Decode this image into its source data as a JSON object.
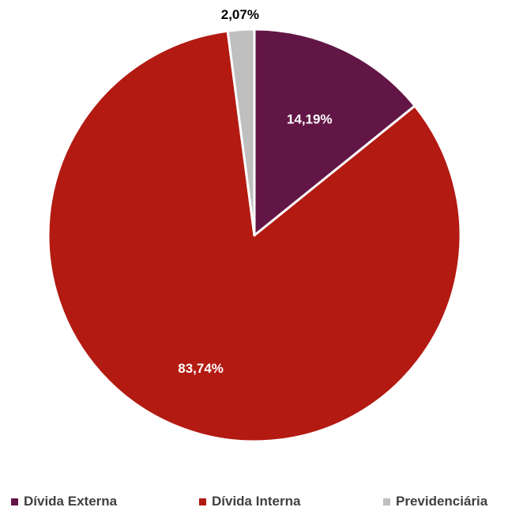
{
  "chart_data": {
    "type": "pie",
    "categories": [
      "Dívida Externa",
      "Dívida Interna",
      "Previdenciária"
    ],
    "values": [
      14.19,
      83.74,
      2.07
    ],
    "data_labels": [
      "14,19%",
      "83,74%",
      "2,07%"
    ],
    "colors": [
      "#621646",
      "#B21A12",
      "#BFBFBF"
    ],
    "label_colors": [
      "#ffffff",
      "#ffffff",
      "#000000"
    ],
    "start_angle_deg": 0,
    "direction": "clockwise",
    "legend_position": "bottom"
  }
}
